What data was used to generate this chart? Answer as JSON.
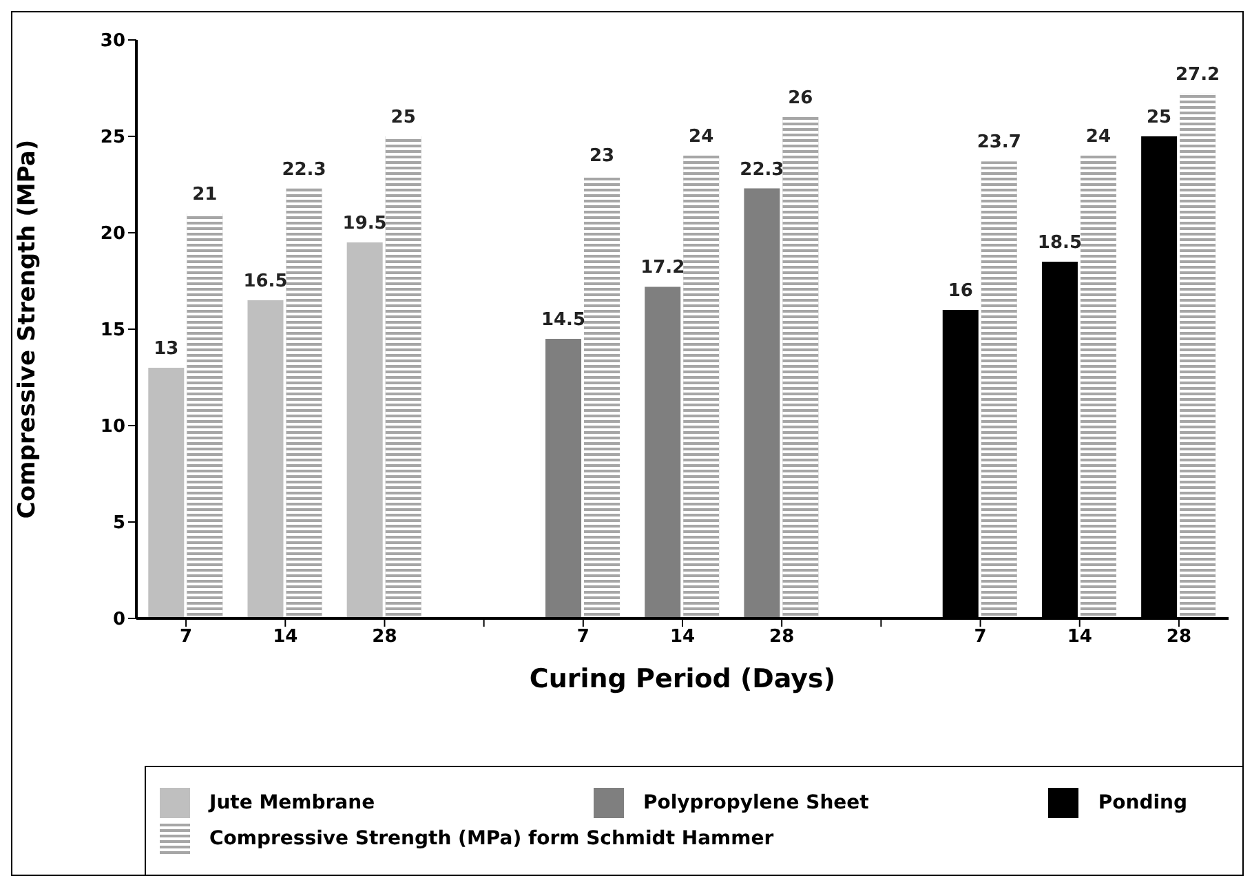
{
  "chart_data": {
    "type": "bar",
    "xlabel": "Curing Period (Days)",
    "ylabel": "Compressive Strength (MPa)",
    "categories": [
      "7",
      "14",
      "28",
      null,
      "7",
      "14",
      "28",
      null,
      "7",
      "14",
      "28"
    ],
    "series": [
      {
        "name": "Jute Membrane",
        "color": "#bfbfbf",
        "values": [
          13,
          16.5,
          19.5,
          null,
          null,
          null,
          null,
          null,
          null,
          null,
          null
        ]
      },
      {
        "name": "Polypropylene Sheet",
        "color": "#7f7f7f",
        "values": [
          null,
          null,
          null,
          null,
          14.5,
          17.2,
          22.3,
          null,
          null,
          null,
          null
        ]
      },
      {
        "name": "Ponding",
        "color": "#000000",
        "values": [
          null,
          null,
          null,
          null,
          null,
          null,
          null,
          null,
          16,
          18.5,
          25
        ]
      },
      {
        "name": "Compressive Strength (MPa) form Schmidt Hammer",
        "color": "#a6a6a6",
        "values": [
          21,
          22.3,
          25,
          null,
          23,
          24,
          26,
          null,
          23.7,
          24,
          27.2
        ]
      }
    ],
    "ylim": [
      0,
      30
    ],
    "yticks": [
      0,
      5,
      10,
      15,
      20,
      25,
      30
    ],
    "grid": false,
    "legend": "bottom",
    "data_labels": true
  }
}
